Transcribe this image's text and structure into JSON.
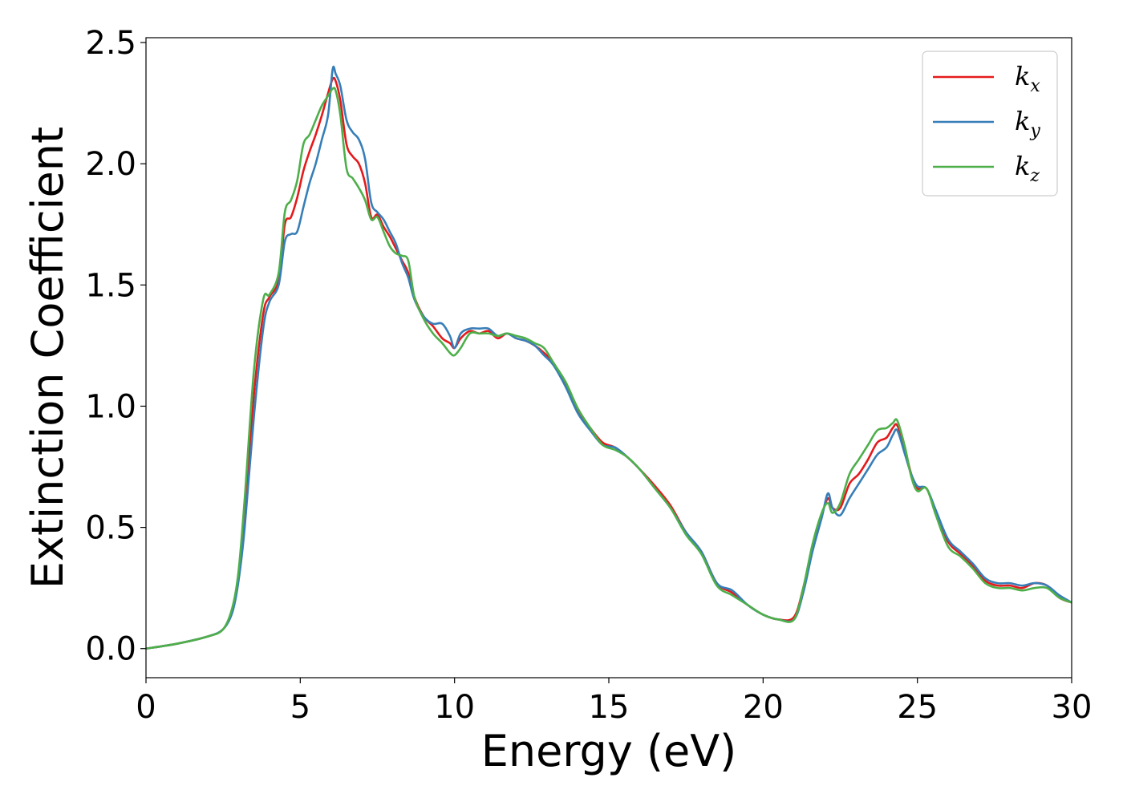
{
  "chart_data": {
    "type": "line",
    "title": "",
    "xlabel": "Energy (eV)",
    "ylabel": "Extinction Coefficient",
    "xlim": [
      0,
      30
    ],
    "ylim": [
      -0.12,
      2.52
    ],
    "xticks": [
      0,
      5,
      10,
      15,
      20,
      25,
      30
    ],
    "xtick_labels": [
      "0",
      "5",
      "10",
      "15",
      "20",
      "25",
      "30"
    ],
    "yticks": [
      0.0,
      0.5,
      1.0,
      1.5,
      2.0,
      2.5
    ],
    "ytick_labels": [
      "0.0",
      "0.5",
      "1.0",
      "1.5",
      "2.0",
      "2.5"
    ],
    "grid": false,
    "legend_position": "top-right",
    "series": [
      {
        "name": "k_x",
        "legend_base": "k",
        "legend_sub": "x",
        "color": "#e41a1c",
        "x": [
          0,
          1,
          2,
          2.5,
          2.8,
          3.0,
          3.2,
          3.5,
          3.8,
          4.0,
          4.3,
          4.5,
          4.7,
          4.9,
          5.1,
          5.3,
          5.5,
          5.7,
          5.9,
          6.05,
          6.15,
          6.3,
          6.5,
          6.7,
          6.9,
          7.1,
          7.3,
          7.5,
          7.7,
          7.9,
          8.1,
          8.3,
          8.5,
          8.7,
          9.0,
          9.3,
          9.6,
          9.85,
          10.0,
          10.2,
          10.5,
          10.8,
          11.1,
          11.4,
          11.7,
          12.0,
          12.3,
          12.6,
          12.9,
          13.2,
          13.6,
          14.0,
          14.4,
          14.8,
          15.2,
          15.6,
          16.0,
          16.5,
          17.0,
          17.5,
          18.0,
          18.5,
          19.0,
          19.5,
          20.0,
          20.5,
          21.0,
          21.3,
          21.6,
          21.9,
          22.1,
          22.25,
          22.5,
          22.8,
          23.1,
          23.4,
          23.7,
          24.0,
          24.2,
          24.35,
          24.6,
          24.8,
          25.0,
          25.3,
          25.6,
          26.0,
          26.4,
          26.8,
          27.2,
          27.6,
          28.0,
          28.4,
          28.8,
          29.2,
          29.6,
          30.0
        ],
        "y": [
          0.0,
          0.02,
          0.05,
          0.08,
          0.16,
          0.3,
          0.56,
          1.05,
          1.38,
          1.45,
          1.52,
          1.75,
          1.78,
          1.86,
          1.97,
          2.05,
          2.12,
          2.2,
          2.29,
          2.35,
          2.34,
          2.26,
          2.08,
          2.03,
          2.0,
          1.92,
          1.78,
          1.79,
          1.74,
          1.7,
          1.65,
          1.6,
          1.55,
          1.45,
          1.37,
          1.33,
          1.28,
          1.26,
          1.24,
          1.28,
          1.31,
          1.3,
          1.31,
          1.28,
          1.3,
          1.28,
          1.27,
          1.25,
          1.22,
          1.18,
          1.09,
          0.98,
          0.91,
          0.85,
          0.83,
          0.79,
          0.74,
          0.67,
          0.59,
          0.48,
          0.4,
          0.27,
          0.23,
          0.18,
          0.14,
          0.12,
          0.13,
          0.25,
          0.42,
          0.55,
          0.62,
          0.58,
          0.58,
          0.68,
          0.72,
          0.78,
          0.85,
          0.87,
          0.91,
          0.92,
          0.82,
          0.72,
          0.66,
          0.66,
          0.56,
          0.44,
          0.39,
          0.34,
          0.28,
          0.26,
          0.26,
          0.25,
          0.27,
          0.26,
          0.21,
          0.19
        ]
      },
      {
        "name": "k_y",
        "legend_base": "k",
        "legend_sub": "y",
        "color": "#377eb8",
        "x": [
          0,
          1,
          2,
          2.5,
          2.8,
          3.0,
          3.2,
          3.5,
          3.8,
          4.0,
          4.3,
          4.5,
          4.7,
          4.9,
          5.1,
          5.3,
          5.5,
          5.7,
          5.9,
          6.05,
          6.15,
          6.3,
          6.5,
          6.7,
          6.9,
          7.1,
          7.3,
          7.5,
          7.7,
          7.9,
          8.1,
          8.3,
          8.5,
          8.7,
          9.0,
          9.3,
          9.6,
          9.85,
          10.0,
          10.2,
          10.5,
          10.8,
          11.1,
          11.4,
          11.7,
          12.0,
          12.3,
          12.6,
          12.9,
          13.2,
          13.6,
          14.0,
          14.4,
          14.8,
          15.2,
          15.6,
          16.0,
          16.5,
          17.0,
          17.5,
          18.0,
          18.5,
          19.0,
          19.5,
          20.0,
          20.5,
          21.0,
          21.3,
          21.6,
          21.9,
          22.1,
          22.25,
          22.5,
          22.8,
          23.1,
          23.4,
          23.7,
          24.0,
          24.2,
          24.35,
          24.6,
          24.8,
          25.0,
          25.3,
          25.6,
          26.0,
          26.4,
          26.8,
          27.2,
          27.6,
          28.0,
          28.4,
          28.8,
          29.2,
          29.6,
          30.0
        ],
        "y": [
          0.0,
          0.02,
          0.05,
          0.08,
          0.15,
          0.28,
          0.5,
          0.96,
          1.32,
          1.43,
          1.5,
          1.68,
          1.71,
          1.72,
          1.82,
          1.92,
          2.0,
          2.1,
          2.2,
          2.39,
          2.37,
          2.32,
          2.18,
          2.13,
          2.1,
          2.02,
          1.84,
          1.8,
          1.77,
          1.72,
          1.67,
          1.59,
          1.53,
          1.44,
          1.37,
          1.34,
          1.34,
          1.29,
          1.24,
          1.3,
          1.32,
          1.32,
          1.32,
          1.29,
          1.3,
          1.28,
          1.27,
          1.25,
          1.21,
          1.17,
          1.08,
          0.97,
          0.9,
          0.84,
          0.83,
          0.79,
          0.74,
          0.66,
          0.58,
          0.48,
          0.4,
          0.27,
          0.24,
          0.18,
          0.14,
          0.12,
          0.12,
          0.23,
          0.4,
          0.54,
          0.64,
          0.58,
          0.55,
          0.62,
          0.68,
          0.74,
          0.8,
          0.83,
          0.88,
          0.9,
          0.8,
          0.72,
          0.67,
          0.66,
          0.57,
          0.45,
          0.4,
          0.35,
          0.29,
          0.27,
          0.27,
          0.26,
          0.27,
          0.26,
          0.22,
          0.19
        ]
      },
      {
        "name": "k_z",
        "legend_base": "k",
        "legend_sub": "z",
        "color": "#4daf4a",
        "x": [
          0,
          1,
          2,
          2.5,
          2.8,
          3.0,
          3.2,
          3.5,
          3.8,
          4.0,
          4.3,
          4.5,
          4.7,
          4.9,
          5.1,
          5.3,
          5.5,
          5.7,
          5.9,
          6.05,
          6.15,
          6.3,
          6.5,
          6.7,
          6.9,
          7.1,
          7.3,
          7.5,
          7.7,
          7.9,
          8.1,
          8.3,
          8.5,
          8.7,
          9.0,
          9.3,
          9.6,
          9.85,
          10.0,
          10.2,
          10.5,
          10.8,
          11.1,
          11.4,
          11.7,
          12.0,
          12.3,
          12.6,
          12.9,
          13.2,
          13.6,
          14.0,
          14.4,
          14.8,
          15.2,
          15.6,
          16.0,
          16.5,
          17.0,
          17.5,
          18.0,
          18.5,
          19.0,
          19.5,
          20.0,
          20.5,
          21.0,
          21.3,
          21.6,
          21.9,
          22.1,
          22.25,
          22.5,
          22.8,
          23.1,
          23.4,
          23.7,
          24.0,
          24.2,
          24.35,
          24.6,
          24.8,
          25.0,
          25.3,
          25.6,
          26.0,
          26.4,
          26.8,
          27.2,
          27.6,
          28.0,
          28.4,
          28.8,
          29.2,
          29.6,
          30.0
        ],
        "y": [
          0.0,
          0.02,
          0.05,
          0.08,
          0.17,
          0.32,
          0.62,
          1.15,
          1.44,
          1.46,
          1.55,
          1.8,
          1.85,
          1.93,
          2.08,
          2.12,
          2.18,
          2.24,
          2.28,
          2.31,
          2.3,
          2.2,
          1.98,
          1.94,
          1.9,
          1.85,
          1.77,
          1.78,
          1.72,
          1.66,
          1.63,
          1.62,
          1.6,
          1.45,
          1.36,
          1.3,
          1.26,
          1.22,
          1.21,
          1.24,
          1.3,
          1.3,
          1.3,
          1.29,
          1.3,
          1.29,
          1.28,
          1.26,
          1.24,
          1.18,
          1.1,
          0.99,
          0.91,
          0.84,
          0.82,
          0.79,
          0.74,
          0.66,
          0.58,
          0.47,
          0.39,
          0.26,
          0.22,
          0.18,
          0.14,
          0.12,
          0.12,
          0.25,
          0.43,
          0.56,
          0.6,
          0.56,
          0.6,
          0.72,
          0.78,
          0.84,
          0.9,
          0.91,
          0.93,
          0.94,
          0.83,
          0.71,
          0.65,
          0.66,
          0.55,
          0.42,
          0.38,
          0.33,
          0.27,
          0.25,
          0.25,
          0.24,
          0.25,
          0.25,
          0.21,
          0.19
        ]
      }
    ]
  }
}
